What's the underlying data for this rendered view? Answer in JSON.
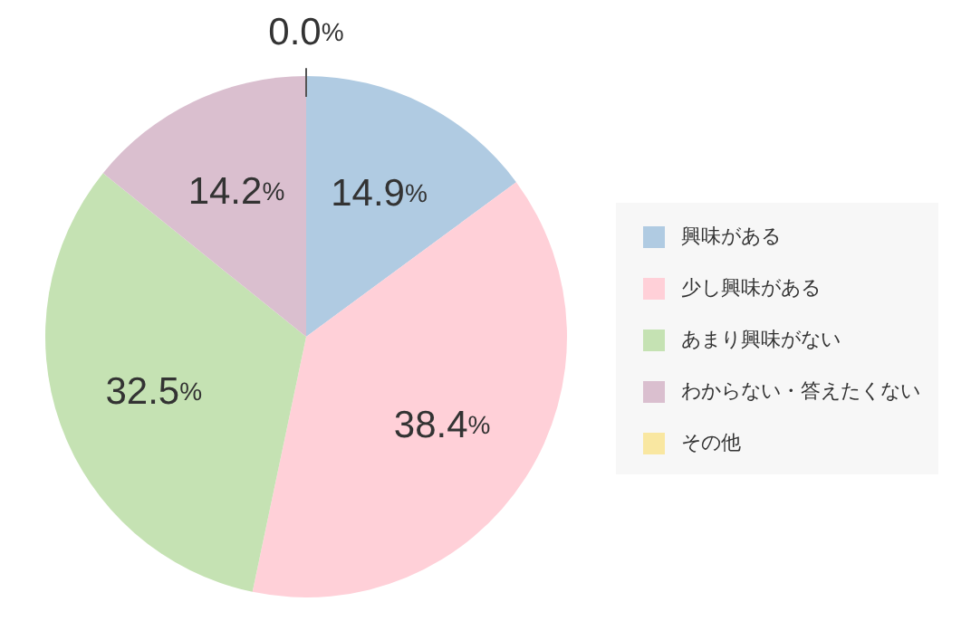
{
  "chart_data": {
    "type": "pie",
    "categories": [
      "興味がある",
      "少し興味がある",
      "あまり興味がない",
      "わからない・答えたくない",
      "その他"
    ],
    "values": [
      14.9,
      38.4,
      32.5,
      14.2,
      0.0
    ],
    "colors": [
      "#b0cbe2",
      "#ffd0d8",
      "#c5e2b3",
      "#dabfcf",
      "#f9e7a1"
    ],
    "value_labels": [
      "14.9%",
      "38.4%",
      "32.5%",
      "14.2%",
      "0.0%"
    ],
    "legend": "right"
  }
}
